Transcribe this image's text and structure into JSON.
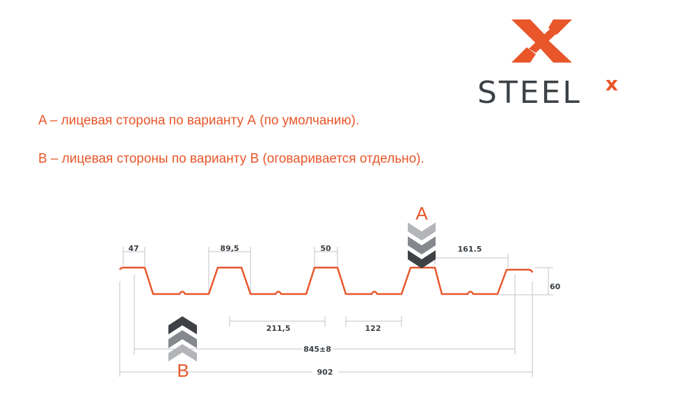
{
  "logo": {
    "text": "STEEL",
    "superscript": "x",
    "brand_color": "#e8562a",
    "text_color": "#3d4247"
  },
  "legend": {
    "line_a": "A – лицевая сторона по варианту А (по умолчанию).",
    "line_b": "B – лицевая стороны по варианту В (оговаривается отдельно)."
  },
  "diagram": {
    "profile_color": "#e8562a",
    "side_a_label": "A",
    "side_b_label": "B",
    "dimensions": {
      "d47": "47",
      "d89": "89,5",
      "d50": "50",
      "d161": "161.5",
      "d60": "60",
      "d211": "211,5",
      "d122": "122",
      "d845": "845±8",
      "d902": "902"
    }
  }
}
